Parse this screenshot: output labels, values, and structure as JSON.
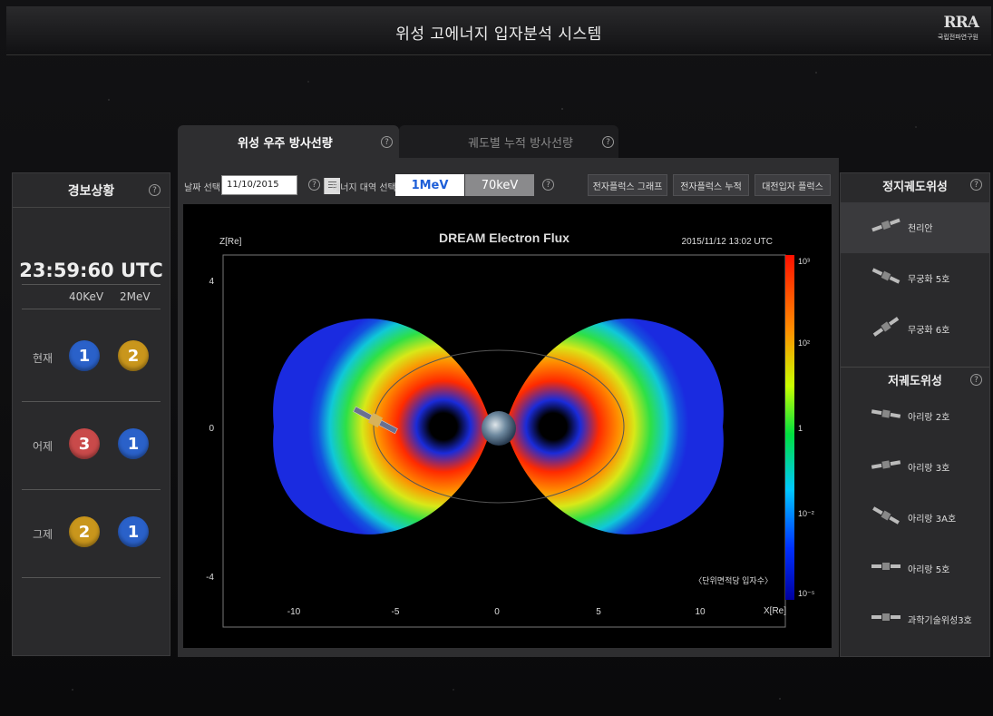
{
  "header": {
    "title": "위성 고에너지 입자분석 시스템",
    "logo_big": "RRA",
    "logo_small": "국립전파연구원"
  },
  "alert_panel": {
    "title": "경보상황",
    "time": "23:59:60  UTC",
    "col1": "40KeV",
    "col2": "2MeV",
    "rows": [
      {
        "label": "현재",
        "v1": "1",
        "v2": "2"
      },
      {
        "label": "어제",
        "v1": "3",
        "v2": "1"
      },
      {
        "label": "그제",
        "v1": "2",
        "v2": "1"
      }
    ],
    "colors": {
      "1": "#2a61c9",
      "2": "#c9961c",
      "3": "#c94a4a"
    }
  },
  "tabs": [
    {
      "label": "위성 우주 방사선량",
      "active": true
    },
    {
      "label": "궤도별 누적 방사선량",
      "active": false
    }
  ],
  "toolbar": {
    "date_label": "날짜 선택",
    "date_value": "11/10/2015",
    "energy_label": "에너지 대역 선택",
    "energy_options": [
      "1MeV",
      "70keV"
    ],
    "energy_selected": "1MeV",
    "btn_graph": "전자플럭스 그래프",
    "btn_cumulative": "전자플럭스 누적",
    "btn_charged": "대전입자 플럭스"
  },
  "plot": {
    "title": "DREAM Electron Flux",
    "timestamp": "2015/11/12 13:02 UTC",
    "z_label": "Z[Re]",
    "x_label": "X[Re]",
    "unit_note": "〈단위면적당 입자수〉",
    "x_ticks": [
      "-10",
      "-5",
      "0",
      "5",
      "10"
    ],
    "z_ticks": [
      "4",
      "0",
      "-4"
    ],
    "colorbar_ticks": [
      "10³",
      "10²",
      "1",
      "10⁻²",
      "10⁻⁵"
    ]
  },
  "geo_sats": {
    "title": "정지궤도위성",
    "items": [
      {
        "name": "천리안",
        "selected": true
      },
      {
        "name": "무궁화 5호",
        "selected": false
      },
      {
        "name": "무궁화 6호",
        "selected": false
      }
    ]
  },
  "leo_sats": {
    "title": "저궤도위성",
    "items": [
      {
        "name": "아리랑 2호"
      },
      {
        "name": "아리랑 3호"
      },
      {
        "name": "아리랑 3A호"
      },
      {
        "name": "아리랑 5호"
      },
      {
        "name": "과학기술위성3호"
      }
    ]
  }
}
